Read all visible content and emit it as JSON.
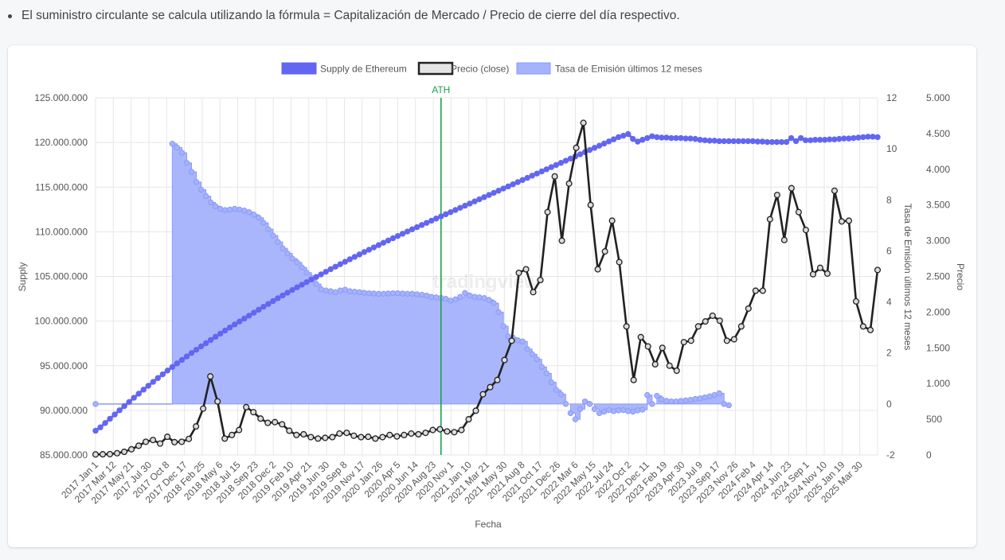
{
  "note": "El suministro circulante se calcula utilizando la fórmula = Capitalización de Mercado / Precio de cierre del día respectivo.",
  "watermark": "tradingview",
  "colors": {
    "supply": "#6366f1",
    "price": "#222222",
    "emission_fill": "#a5b2fc",
    "emission_stroke": "#8a9bf7",
    "ath": "#16a34a",
    "grid": "#e6e6e6"
  },
  "chart_data": {
    "type": "line",
    "xlabel": "Fecha",
    "x_ticks": [
      "2017 Jan 1",
      "2017 Mar 12",
      "2017 May 21",
      "2017 Jul 30",
      "2017 Oct 8",
      "2017 Dec 17",
      "2018 Feb 25",
      "2018 May 6",
      "2018 Jul 15",
      "2018 Sep 23",
      "2018 Dec 2",
      "2019 Feb 10",
      "2019 Apr 21",
      "2019 Jun 30",
      "2019 Sep 8",
      "2019 Nov 17",
      "2020 Jan 26",
      "2020 Apr 5",
      "2020 Jun 14",
      "2020 Aug 23",
      "2020 Nov 1",
      "2021 Jan 10",
      "2021 Mar 21",
      "2021 May 30",
      "2021 Aug 8",
      "2021 Oct 17",
      "2021 Dec 26",
      "2022 Mar 6",
      "2022 May 15",
      "2022 Jul 24",
      "2022 Oct 2",
      "2022 Dec 11",
      "2023 Feb 19",
      "2023 Apr 30",
      "2023 Jul 9",
      "2023 Sep 17",
      "2023 Nov 26",
      "2024 Feb 4",
      "2024 Apr 14",
      "2024 Jun 23",
      "2024 Sep 1",
      "2024 Nov 10",
      "2025 Jan 19",
      "2025 Mar 30"
    ],
    "axes": {
      "supply": {
        "label": "Supply",
        "range": [
          85000000,
          125000000
        ],
        "ticks": [
          "85.000.000",
          "90.000.000",
          "95.000.000",
          "100.000.000",
          "105.000.000",
          "110.000.000",
          "115.000.000",
          "120.000.000",
          "125.000.000"
        ]
      },
      "emission": {
        "label": "Tasa de Emisión últimos 12 meses",
        "range": [
          -2,
          12
        ],
        "ticks": [
          "-2",
          "0",
          "2",
          "4",
          "6",
          "8",
          "10",
          "12"
        ]
      },
      "price": {
        "label": "Precio",
        "range": [
          0,
          5000
        ],
        "ticks": [
          "0",
          "500",
          "1.000",
          "1.500",
          "2.000",
          "2.500",
          "3.000",
          "3.500",
          "4.000",
          "4.500",
          "5.000"
        ]
      }
    },
    "annotation": {
      "label": "ATH",
      "x_index": 72
    },
    "series": [
      {
        "name": "Supply de Ethereum",
        "axis": "supply",
        "values": [
          87720000,
          88100000,
          88580000,
          89060000,
          89540000,
          90010000,
          90480000,
          90940000,
          91410000,
          91870000,
          92320000,
          92760000,
          93190000,
          93620000,
          94040000,
          94460000,
          94860000,
          95260000,
          95650000,
          96040000,
          96420000,
          96790000,
          97160000,
          97520000,
          97880000,
          98240000,
          98590000,
          98940000,
          99280000,
          99620000,
          99950000,
          100280000,
          100610000,
          100940000,
          101270000,
          101600000,
          101920000,
          102240000,
          102560000,
          102870000,
          103180000,
          103480000,
          103780000,
          104070000,
          104360000,
          104650000,
          104940000,
          105230000,
          105520000,
          105810000,
          106090000,
          106370000,
          106640000,
          106920000,
          107190000,
          107460000,
          107730000,
          107990000,
          108250000,
          108510000,
          108770000,
          109030000,
          109280000,
          109530000,
          109780000,
          110030000,
          110280000,
          110520000,
          110760000,
          111000000,
          111240000,
          111480000,
          111720000,
          111960000,
          112200000,
          112440000,
          112680000,
          112920000,
          113160000,
          113400000,
          113640000,
          113880000,
          114120000,
          114360000,
          114600000,
          114840000,
          115080000,
          115320000,
          115560000,
          115800000,
          116040000,
          116280000,
          116520000,
          116760000,
          117000000,
          117240000,
          117480000,
          117720000,
          117960000,
          118200000,
          118440000,
          118680000,
          118920000,
          119160000,
          119400000,
          119640000,
          119880000,
          120120000,
          120360000,
          120600000,
          120760000,
          120950000,
          120400000,
          120100000,
          120300000,
          120500000,
          120700000,
          120600000,
          120550000,
          120550000,
          120500000,
          120500000,
          120500000,
          120450000,
          120450000,
          120400000,
          120300000,
          120250000,
          120200000,
          120200000,
          120150000,
          120150000,
          120150000,
          120150000,
          120150000,
          120150000,
          120150000,
          120150000,
          120100000,
          120100000,
          120050000,
          120050000,
          120050000,
          120050000,
          120050000,
          120500000,
          120150000,
          120500000,
          120250000,
          120250000,
          120300000,
          120300000,
          120300000,
          120350000,
          120350000,
          120400000,
          120450000,
          120450000,
          120500000,
          120550000,
          120600000,
          120650000,
          120650000,
          120600000
        ]
      },
      {
        "name": "Precio (close)",
        "axis": "price",
        "values": [
          8,
          10,
          12,
          25,
          45,
          80,
          130,
          185,
          210,
          160,
          255,
          180,
          185,
          225,
          400,
          650,
          1100,
          750,
          230,
          280,
          350,
          670,
          600,
          510,
          450,
          460,
          430,
          340,
          280,
          290,
          250,
          230,
          240,
          250,
          300,
          310,
          270,
          250,
          255,
          230,
          250,
          280,
          260,
          280,
          300,
          290,
          310,
          350,
          360,
          330,
          320,
          350,
          500,
          620,
          850,
          950,
          1050,
          1330,
          1600,
          2550,
          2600,
          2280,
          2450,
          3400,
          3900,
          3000,
          3800,
          4300,
          4650,
          3500,
          2600,
          2850,
          3280,
          2700,
          1800,
          1050,
          1650,
          1520,
          1270,
          1500,
          1250,
          1180,
          1580,
          1600,
          1800,
          1870,
          1950,
          1880,
          1600,
          1620,
          1800,
          2050,
          2300,
          2300,
          3300,
          3640,
          3010,
          3735,
          3400,
          3150,
          2530,
          2620,
          2540,
          3700,
          3270,
          3280,
          2150,
          1800,
          1750,
          2590
        ]
      },
      {
        "name": "Tasa de Emisión últimos 12 meses",
        "axis": "emission",
        "start_index": 16,
        "values": [
          10.2,
          10.05,
          9.85,
          9.45,
          9.1,
          8.7,
          8.4,
          8.15,
          7.9,
          7.75,
          7.65,
          7.6,
          7.62,
          7.65,
          7.62,
          7.58,
          7.52,
          7.42,
          7.3,
          7.1,
          6.85,
          6.6,
          6.35,
          6.1,
          5.9,
          5.7,
          5.55,
          5.35,
          5.15,
          4.95,
          4.7,
          4.5,
          4.45,
          4.42,
          4.38,
          4.45,
          4.48,
          4.42,
          4.4,
          4.38,
          4.36,
          4.34,
          4.33,
          4.32,
          4.32,
          4.33,
          4.34,
          4.34,
          4.33,
          4.32,
          4.32,
          4.3,
          4.28,
          4.25,
          4.2,
          4.18,
          4.16,
          4.12,
          4.05,
          4.1,
          4.2,
          4.35,
          4.25,
          4.2,
          4.18,
          4.15,
          4.08,
          3.95,
          3.6,
          3.05,
          2.65,
          2.6,
          2.5,
          2.45,
          2.15,
          1.95,
          1.75,
          1.45,
          1.2,
          0.85,
          0.55,
          0.38,
          0.0,
          -0.36,
          -0.6,
          -0.2,
          0.1,
          0.0,
          -0.2,
          -0.36,
          -0.3,
          -0.24,
          -0.28,
          -0.25,
          -0.24,
          -0.28,
          -0.3,
          -0.25,
          -0.22,
          0.35,
          0.0,
          0.32,
          0.18,
          0.12,
          0.1,
          0.1,
          0.12,
          0.14,
          0.16,
          0.2,
          0.22,
          0.26,
          0.3,
          0.35,
          0.42,
          0.0,
          -0.05
        ]
      }
    ]
  }
}
